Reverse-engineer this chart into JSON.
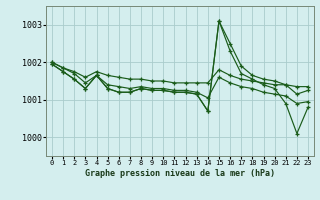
{
  "bg_color": "#d4eeee",
  "grid_color": "#aacccc",
  "line_color": "#1a5c1a",
  "title": "Graphe pression niveau de la mer (hPa)",
  "xlim": [
    -0.5,
    23.5
  ],
  "ylim": [
    999.5,
    1003.5
  ],
  "yticks": [
    1000,
    1001,
    1002,
    1003
  ],
  "xticks": [
    0,
    1,
    2,
    3,
    4,
    5,
    6,
    7,
    8,
    9,
    10,
    11,
    12,
    13,
    14,
    15,
    16,
    17,
    18,
    19,
    20,
    21,
    22,
    23
  ],
  "series": [
    [
      1002.0,
      1001.85,
      1001.75,
      1001.6,
      1001.75,
      1001.65,
      1001.6,
      1001.55,
      1001.55,
      1001.5,
      1001.5,
      1001.45,
      1001.45,
      1001.45,
      1001.45,
      1001.8,
      1001.65,
      1001.55,
      1001.5,
      1001.45,
      1001.4,
      1001.4,
      1001.35,
      1001.35
    ],
    [
      1002.0,
      1001.85,
      1001.7,
      1001.45,
      1001.65,
      1001.4,
      1001.35,
      1001.3,
      1001.35,
      1001.3,
      1001.3,
      1001.25,
      1001.25,
      1001.2,
      1001.05,
      1001.6,
      1001.45,
      1001.35,
      1001.3,
      1001.2,
      1001.15,
      1001.1,
      1000.9,
      1000.95
    ],
    [
      1001.95,
      1001.75,
      1001.55,
      1001.3,
      1001.65,
      1001.3,
      1001.2,
      1001.2,
      1001.3,
      1001.25,
      1001.25,
      1001.2,
      1001.2,
      1001.15,
      1000.7,
      1003.1,
      1002.5,
      1001.9,
      1001.65,
      1001.55,
      1001.5,
      1001.4,
      1001.15,
      1001.25
    ],
    [
      1001.95,
      1001.75,
      1001.55,
      1001.3,
      1001.65,
      1001.3,
      1001.2,
      1001.2,
      1001.3,
      1001.25,
      1001.25,
      1001.2,
      1001.2,
      1001.15,
      1000.7,
      1003.1,
      1002.3,
      1001.7,
      1001.55,
      1001.4,
      1001.3,
      1000.9,
      1000.1,
      1000.8
    ]
  ]
}
